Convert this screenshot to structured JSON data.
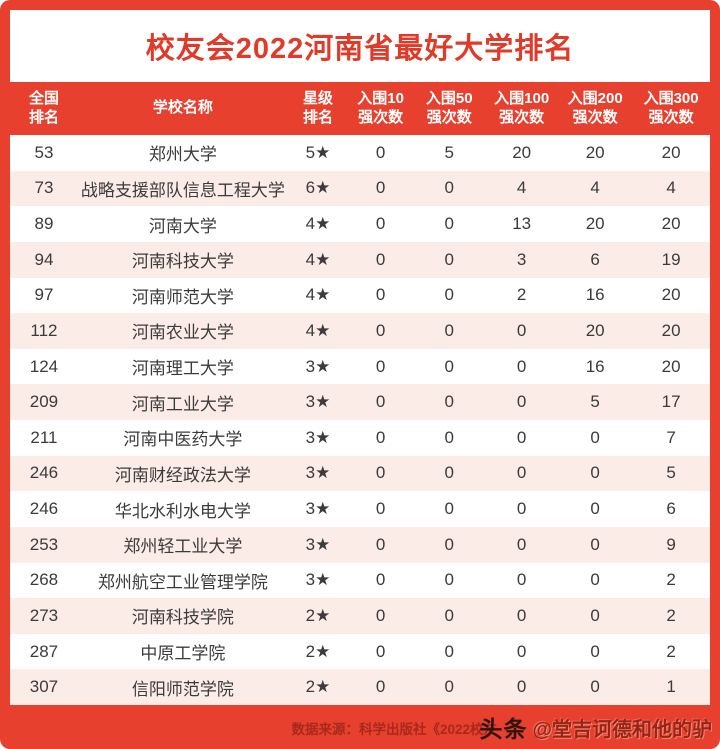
{
  "title": "校友会2022河南省最好大学排名",
  "table": {
    "header_cells": [
      {
        "line1": "全国",
        "line2": "排名"
      },
      {
        "line1": "学校名称",
        "line2": ""
      },
      {
        "line1": "星级",
        "line2": "排名"
      },
      {
        "line1": "入围10",
        "line2": "强次数"
      },
      {
        "line1": "入围50",
        "line2": "强次数"
      },
      {
        "line1": "入围100",
        "line2": "强次数"
      },
      {
        "line1": "入围200",
        "line2": "强次数"
      },
      {
        "line1": "入围300",
        "line2": "强次数"
      }
    ]
  },
  "chart_data": {
    "type": "table",
    "title": "校友会2022河南省最好大学排名",
    "columns": [
      "全国排名",
      "学校名称",
      "星级排名",
      "入围10强次数",
      "入围50强次数",
      "入围100强次数",
      "入围200强次数",
      "入围300强次数"
    ],
    "rows": [
      [
        "53",
        "郑州大学",
        "5★",
        "0",
        "5",
        "20",
        "20",
        "20"
      ],
      [
        "73",
        "战略支援部队信息工程大学",
        "6★",
        "0",
        "0",
        "4",
        "4",
        "4"
      ],
      [
        "89",
        "河南大学",
        "4★",
        "0",
        "0",
        "13",
        "20",
        "20"
      ],
      [
        "94",
        "河南科技大学",
        "4★",
        "0",
        "0",
        "3",
        "6",
        "19"
      ],
      [
        "97",
        "河南师范大学",
        "4★",
        "0",
        "0",
        "2",
        "16",
        "20"
      ],
      [
        "112",
        "河南农业大学",
        "4★",
        "0",
        "0",
        "0",
        "20",
        "20"
      ],
      [
        "124",
        "河南理工大学",
        "3★",
        "0",
        "0",
        "0",
        "16",
        "20"
      ],
      [
        "209",
        "河南工业大学",
        "3★",
        "0",
        "0",
        "0",
        "5",
        "17"
      ],
      [
        "211",
        "河南中医药大学",
        "3★",
        "0",
        "0",
        "0",
        "0",
        "7"
      ],
      [
        "246",
        "河南财经政法大学",
        "3★",
        "0",
        "0",
        "0",
        "0",
        "5"
      ],
      [
        "246",
        "华北水利水电大学",
        "3★",
        "0",
        "0",
        "0",
        "0",
        "6"
      ],
      [
        "253",
        "郑州轻工业大学",
        "3★",
        "0",
        "0",
        "0",
        "0",
        "9"
      ],
      [
        "268",
        "郑州航空工业管理学院",
        "3★",
        "0",
        "0",
        "0",
        "0",
        "2"
      ],
      [
        "273",
        "河南科技学院",
        "2★",
        "0",
        "0",
        "0",
        "0",
        "2"
      ],
      [
        "287",
        "中原工学院",
        "2★",
        "0",
        "0",
        "0",
        "0",
        "2"
      ],
      [
        "307",
        "信阳师范学院",
        "2★",
        "0",
        "0",
        "0",
        "0",
        "1"
      ]
    ]
  },
  "footer": {
    "source": "数据来源：科学出版社《2022校友"
  },
  "watermark": {
    "brand": "头条",
    "handle": "@堂吉诃德和他的驴"
  },
  "colors": {
    "frame_red": "#e7402e",
    "title_red": "#e23a28",
    "header_text": "#ffffff",
    "row_alt_pink": "#fcece7",
    "row_text": "#3b3b3b",
    "source_text": "#a8291b",
    "watermark_brand": "#2e130c",
    "watermark_handle": "#992415"
  }
}
